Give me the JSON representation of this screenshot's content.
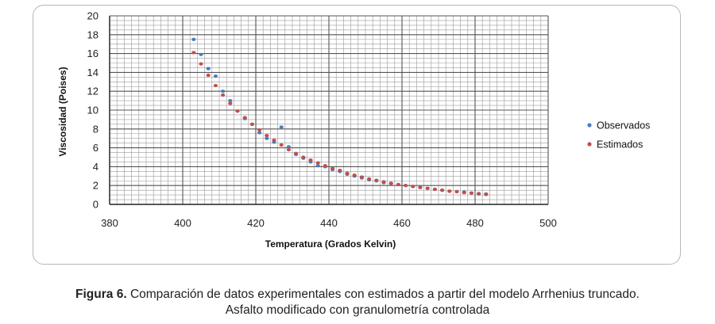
{
  "chart_data": {
    "type": "scatter",
    "xlabel": "Temperatura (Grados Kelvin)",
    "ylabel": "Viscosidad (Poises)",
    "xlim": [
      380,
      500
    ],
    "ylim": [
      0,
      20
    ],
    "x_ticks": [
      "380",
      "400",
      "420",
      "440",
      "460",
      "480",
      "500"
    ],
    "y_ticks": [
      "0",
      "2",
      "4",
      "6",
      "8",
      "10",
      "12",
      "14",
      "16",
      "18",
      "20"
    ],
    "grid": true,
    "legend_position": "right",
    "series": [
      {
        "name": "Observados",
        "color": "#4a7ebb",
        "points": [
          [
            403,
            17.5
          ],
          [
            405,
            15.9
          ],
          [
            407,
            14.4
          ],
          [
            409,
            13.6
          ],
          [
            411,
            12.0
          ],
          [
            413,
            11.0
          ],
          [
            415,
            9.9
          ],
          [
            417,
            9.1
          ],
          [
            419,
            8.5
          ],
          [
            421,
            7.6
          ],
          [
            423,
            7.0
          ],
          [
            425,
            6.6
          ],
          [
            427,
            8.2
          ],
          [
            429,
            6.1
          ],
          [
            431,
            5.3
          ],
          [
            433,
            4.9
          ],
          [
            435,
            4.5
          ],
          [
            437,
            4.1
          ],
          [
            439,
            4.0
          ],
          [
            441,
            3.7
          ],
          [
            443,
            3.5
          ],
          [
            445,
            3.2
          ],
          [
            447,
            3.0
          ],
          [
            449,
            2.8
          ],
          [
            451,
            2.6
          ],
          [
            453,
            2.5
          ],
          [
            455,
            2.3
          ],
          [
            457,
            2.2
          ],
          [
            459,
            2.1
          ],
          [
            461,
            2.0
          ],
          [
            463,
            1.9
          ],
          [
            465,
            1.8
          ],
          [
            467,
            1.7
          ],
          [
            469,
            1.6
          ],
          [
            471,
            1.5
          ],
          [
            473,
            1.4
          ],
          [
            475,
            1.35
          ],
          [
            477,
            1.3
          ],
          [
            479,
            1.2
          ],
          [
            481,
            1.15
          ],
          [
            483,
            1.1
          ]
        ]
      },
      {
        "name": "Estimados",
        "color": "#c0504d",
        "points": [
          [
            403,
            16.1
          ],
          [
            405,
            14.9
          ],
          [
            407,
            13.7
          ],
          [
            409,
            12.6
          ],
          [
            411,
            11.6
          ],
          [
            413,
            10.7
          ],
          [
            415,
            9.9
          ],
          [
            417,
            9.2
          ],
          [
            419,
            8.5
          ],
          [
            421,
            7.9
          ],
          [
            423,
            7.3
          ],
          [
            425,
            6.8
          ],
          [
            427,
            6.3
          ],
          [
            429,
            5.8
          ],
          [
            431,
            5.4
          ],
          [
            433,
            5.0
          ],
          [
            435,
            4.7
          ],
          [
            437,
            4.4
          ],
          [
            439,
            4.1
          ],
          [
            441,
            3.8
          ],
          [
            443,
            3.6
          ],
          [
            445,
            3.3
          ],
          [
            447,
            3.1
          ],
          [
            449,
            2.9
          ],
          [
            451,
            2.7
          ],
          [
            453,
            2.55
          ],
          [
            455,
            2.4
          ],
          [
            457,
            2.25
          ],
          [
            459,
            2.1
          ],
          [
            461,
            2.0
          ],
          [
            463,
            1.9
          ],
          [
            465,
            1.8
          ],
          [
            467,
            1.7
          ],
          [
            469,
            1.6
          ],
          [
            471,
            1.5
          ],
          [
            473,
            1.4
          ],
          [
            475,
            1.35
          ],
          [
            477,
            1.25
          ],
          [
            479,
            1.2
          ],
          [
            481,
            1.1
          ],
          [
            483,
            1.05
          ]
        ]
      }
    ]
  },
  "caption": {
    "label": "Figura 6.",
    "line1": " Comparación de datos experimentales con estimados a partir del modelo Arrhenius truncado.",
    "line2": "Asfalto modificado con granulometría controlada"
  }
}
